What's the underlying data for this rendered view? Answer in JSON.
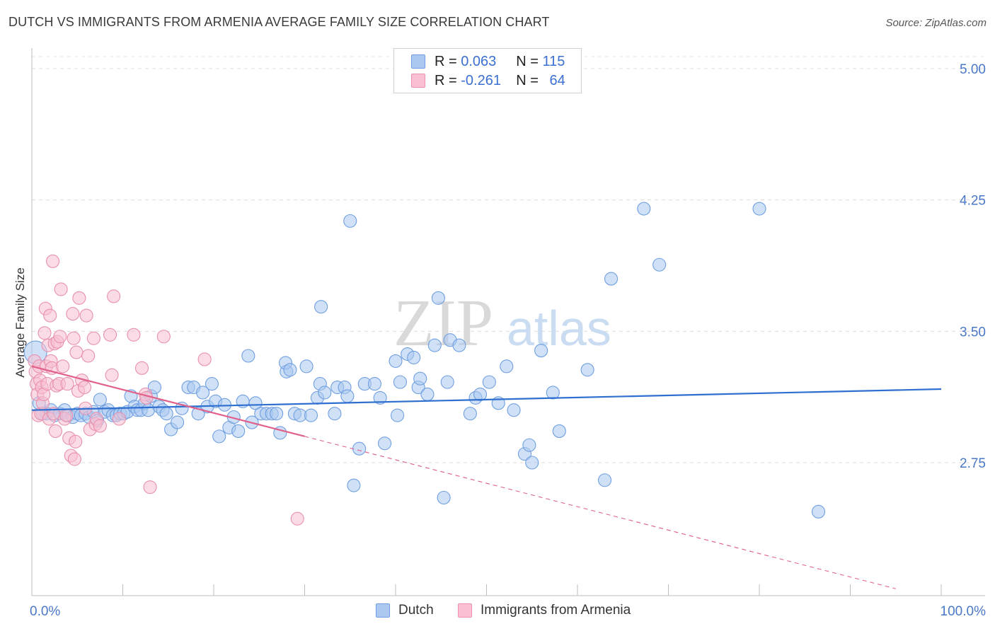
{
  "title": "DUTCH VS IMMIGRANTS FROM ARMENIA AVERAGE FAMILY SIZE CORRELATION CHART",
  "source": "Source: ZipAtlas.com",
  "watermark": {
    "zip": "ZIP",
    "atlas": "atlas"
  },
  "legend": {
    "rows": [
      {
        "r_label": "R =",
        "r_value": "0.063",
        "n_label": "N =",
        "n_value": "115",
        "color": "#aac8f0",
        "border": "#6f9fe0"
      },
      {
        "r_label": "R =",
        "r_value": "-0.261",
        "n_label": "N =",
        "n_value": "64",
        "color": "#f8c0d2",
        "border": "#e890ac"
      }
    ]
  },
  "bottom_legend": [
    {
      "label": "Dutch",
      "color": "#aac8f0",
      "border": "#6f9fe0"
    },
    {
      "label": "Immigrants from Armenia",
      "color": "#f8c0d2",
      "border": "#e890ac"
    }
  ],
  "chart_data": {
    "type": "scatter",
    "title": "DUTCH VS IMMIGRANTS FROM ARMENIA AVERAGE FAMILY SIZE CORRELATION CHART",
    "xlabel": "",
    "ylabel": "Average Family Size",
    "xlim": [
      0,
      100
    ],
    "ylim": [
      2.0,
      5.1
    ],
    "x_tick_labels": [
      "0.0%",
      "100.0%"
    ],
    "y_ticks": [
      2.75,
      3.5,
      4.25,
      5.0
    ],
    "y_tick_labels": [
      "2.75",
      "3.50",
      "4.25",
      "5.00"
    ],
    "grid": "horizontal dashed",
    "legend_position": "top-center",
    "series": [
      {
        "name": "Dutch",
        "color": "#6f9fe0",
        "fill": "#aac8f0",
        "trend": {
          "x": [
            0,
            100
          ],
          "y": [
            3.05,
            3.17
          ],
          "style": "solid",
          "color": "#2f6fd0"
        },
        "points": [
          [
            0.4,
            3.38
          ],
          [
            0.8,
            3.09
          ],
          [
            1.2,
            3.03
          ],
          [
            1.6,
            3.03
          ],
          [
            2.1,
            3.05
          ],
          [
            2.5,
            3.02
          ],
          [
            3.1,
            3.03
          ],
          [
            3.6,
            3.05
          ],
          [
            4.0,
            3.02
          ],
          [
            4.5,
            3.01
          ],
          [
            5.0,
            3.03
          ],
          [
            5.4,
            3.02
          ],
          [
            5.9,
            3.03
          ],
          [
            6.3,
            3.01
          ],
          [
            6.8,
            3.04
          ],
          [
            7.2,
            2.99
          ],
          [
            7.5,
            3.11
          ],
          [
            8.0,
            3.04
          ],
          [
            8.4,
            3.05
          ],
          [
            8.9,
            3.02
          ],
          [
            9.3,
            3.02
          ],
          [
            9.7,
            3.03
          ],
          [
            10.1,
            3.03
          ],
          [
            10.5,
            3.04
          ],
          [
            10.9,
            3.13
          ],
          [
            11.3,
            3.07
          ],
          [
            11.6,
            3.05
          ],
          [
            12.0,
            3.05
          ],
          [
            12.4,
            3.09
          ],
          [
            12.8,
            3.05
          ],
          [
            13.1,
            3.13
          ],
          [
            13.5,
            3.18
          ],
          [
            14.0,
            3.07
          ],
          [
            14.4,
            3.05
          ],
          [
            14.8,
            3.03
          ],
          [
            15.3,
            2.94
          ],
          [
            16.0,
            2.98
          ],
          [
            16.5,
            3.06
          ],
          [
            17.2,
            3.18
          ],
          [
            17.8,
            3.18
          ],
          [
            18.3,
            3.03
          ],
          [
            18.8,
            3.15
          ],
          [
            19.3,
            3.07
          ],
          [
            19.8,
            3.2
          ],
          [
            20.2,
            3.1
          ],
          [
            20.6,
            2.9
          ],
          [
            21.2,
            3.08
          ],
          [
            21.7,
            2.95
          ],
          [
            22.2,
            3.01
          ],
          [
            22.7,
            2.93
          ],
          [
            23.2,
            3.1
          ],
          [
            23.8,
            3.36
          ],
          [
            24.2,
            2.98
          ],
          [
            24.6,
            3.09
          ],
          [
            25.2,
            3.03
          ],
          [
            25.8,
            3.03
          ],
          [
            26.4,
            3.03
          ],
          [
            26.9,
            3.03
          ],
          [
            27.3,
            2.92
          ],
          [
            28.0,
            3.27
          ],
          [
            27.9,
            3.32
          ],
          [
            28.4,
            3.28
          ],
          [
            28.9,
            3.03
          ],
          [
            29.5,
            3.02
          ],
          [
            30.2,
            3.3
          ],
          [
            30.7,
            3.02
          ],
          [
            31.4,
            3.12
          ],
          [
            31.8,
            3.64
          ],
          [
            31.7,
            3.2
          ],
          [
            32.2,
            3.15
          ],
          [
            33.6,
            3.18
          ],
          [
            33.3,
            3.03
          ],
          [
            34.4,
            3.18
          ],
          [
            34.7,
            3.13
          ],
          [
            35.0,
            4.13
          ],
          [
            35.4,
            2.62
          ],
          [
            36.0,
            2.83
          ],
          [
            36.6,
            3.2
          ],
          [
            37.7,
            3.2
          ],
          [
            38.3,
            3.12
          ],
          [
            38.8,
            2.86
          ],
          [
            40.0,
            3.33
          ],
          [
            40.2,
            3.02
          ],
          [
            40.5,
            3.21
          ],
          [
            41.3,
            3.37
          ],
          [
            42.0,
            3.35
          ],
          [
            42.5,
            3.18
          ],
          [
            42.7,
            3.23
          ],
          [
            43.5,
            3.14
          ],
          [
            44.3,
            3.42
          ],
          [
            44.7,
            3.69
          ],
          [
            45.3,
            2.55
          ],
          [
            45.7,
            3.21
          ],
          [
            46.0,
            3.45
          ],
          [
            47.0,
            3.42
          ],
          [
            48.2,
            3.03
          ],
          [
            48.8,
            3.12
          ],
          [
            49.3,
            3.14
          ],
          [
            50.3,
            3.21
          ],
          [
            51.3,
            3.09
          ],
          [
            52.2,
            3.3
          ],
          [
            53.0,
            3.05
          ],
          [
            54.2,
            2.8
          ],
          [
            54.7,
            2.85
          ],
          [
            55.0,
            2.75
          ],
          [
            56.0,
            3.39
          ],
          [
            57.3,
            3.15
          ],
          [
            58.0,
            2.93
          ],
          [
            61.1,
            3.28
          ],
          [
            63.7,
            3.8
          ],
          [
            63.0,
            2.65
          ],
          [
            67.3,
            4.2
          ],
          [
            69.0,
            3.88
          ],
          [
            80.0,
            4.2
          ],
          [
            86.5,
            2.47
          ]
        ]
      },
      {
        "name": "Immigrants from Armenia",
        "color": "#e890ac",
        "fill": "#f8c0d2",
        "trend": {
          "x": [
            0,
            30
          ],
          "y": [
            3.3,
            2.9
          ],
          "style": "solid",
          "color": "#e0608a",
          "extended": {
            "x": [
              30,
              95
            ],
            "y": [
              2.9,
              2.03
            ],
            "style": "dashed"
          }
        },
        "points": [
          [
            0.3,
            3.33
          ],
          [
            0.4,
            3.27
          ],
          [
            0.5,
            3.2
          ],
          [
            0.6,
            3.14
          ],
          [
            0.7,
            3.02
          ],
          [
            0.8,
            3.3
          ],
          [
            0.9,
            3.22
          ],
          [
            1.0,
            3.03
          ],
          [
            1.1,
            3.18
          ],
          [
            1.2,
            3.09
          ],
          [
            1.3,
            3.14
          ],
          [
            1.4,
            3.49
          ],
          [
            1.5,
            3.63
          ],
          [
            1.6,
            3.3
          ],
          [
            1.7,
            3.2
          ],
          [
            1.8,
            3.42
          ],
          [
            1.9,
            3.0
          ],
          [
            2.0,
            3.59
          ],
          [
            2.1,
            3.33
          ],
          [
            2.2,
            3.29
          ],
          [
            2.3,
            3.9
          ],
          [
            2.4,
            3.03
          ],
          [
            2.5,
            3.43
          ],
          [
            2.6,
            2.93
          ],
          [
            2.7,
            3.19
          ],
          [
            2.8,
            3.44
          ],
          [
            3.0,
            3.2
          ],
          [
            3.1,
            3.47
          ],
          [
            3.2,
            3.74
          ],
          [
            3.4,
            3.3
          ],
          [
            3.6,
            3.0
          ],
          [
            3.8,
            3.02
          ],
          [
            3.9,
            3.2
          ],
          [
            4.1,
            2.89
          ],
          [
            4.3,
            2.79
          ],
          [
            4.5,
            3.6
          ],
          [
            4.6,
            3.46
          ],
          [
            4.7,
            2.77
          ],
          [
            4.8,
            2.87
          ],
          [
            4.9,
            3.38
          ],
          [
            5.1,
            3.16
          ],
          [
            5.2,
            3.69
          ],
          [
            5.5,
            3.22
          ],
          [
            5.8,
            3.18
          ],
          [
            5.9,
            3.06
          ],
          [
            6.0,
            3.59
          ],
          [
            6.2,
            3.36
          ],
          [
            6.4,
            2.94
          ],
          [
            6.8,
            3.46
          ],
          [
            7.0,
            2.97
          ],
          [
            7.1,
            3.0
          ],
          [
            7.5,
            2.96
          ],
          [
            8.6,
            3.48
          ],
          [
            8.8,
            3.25
          ],
          [
            9.0,
            3.7
          ],
          [
            9.6,
            3.0
          ],
          [
            11.2,
            3.48
          ],
          [
            12.1,
            3.29
          ],
          [
            12.5,
            3.14
          ],
          [
            12.6,
            3.12
          ],
          [
            13.0,
            2.61
          ],
          [
            14.5,
            3.47
          ],
          [
            19.0,
            3.34
          ],
          [
            29.2,
            2.43
          ]
        ]
      }
    ]
  }
}
